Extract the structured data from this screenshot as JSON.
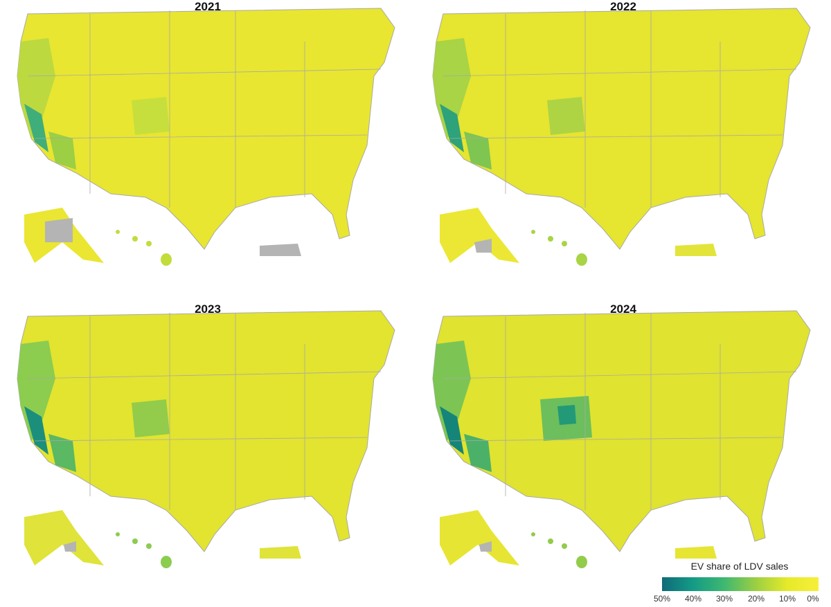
{
  "panels": [
    {
      "year": "2021"
    },
    {
      "year": "2022"
    },
    {
      "year": "2023"
    },
    {
      "year": "2024"
    }
  ],
  "legend": {
    "title": "EV share of LDV sales",
    "ticks": [
      "50%",
      "40%",
      "30%",
      "20%",
      "10%",
      "0%"
    ],
    "scale_min": 50,
    "scale_max": 0
  },
  "colors": {
    "low": "#f7ef3a",
    "mid": "#9ccf43",
    "high": "#0f6b78",
    "no_data": "#b4b4b4",
    "borders": "#a8a8a8"
  }
}
